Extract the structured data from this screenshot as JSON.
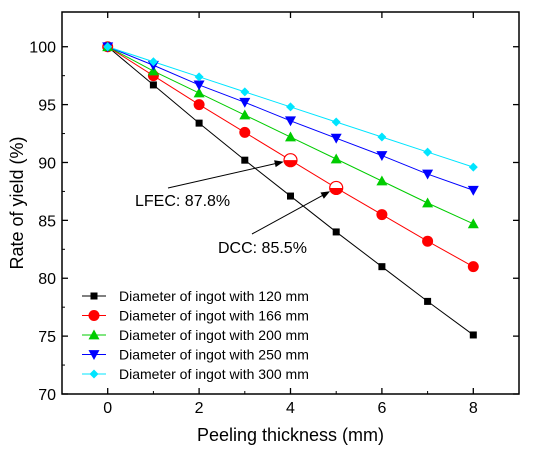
{
  "chart_data": {
    "type": "line",
    "title": "",
    "xlabel": "Peeling thickness (mm)",
    "ylabel": "Rate of yield (%)",
    "xlim": [
      -1,
      9
    ],
    "ylim": [
      70,
      103
    ],
    "x": [
      0,
      1,
      2,
      3,
      4,
      5,
      6,
      7,
      8
    ],
    "xticks": [
      0,
      2,
      4,
      6,
      8
    ],
    "yticks": [
      70,
      75,
      80,
      85,
      90,
      95,
      100
    ],
    "grid": false,
    "legend_position": "bottom-left",
    "series": [
      {
        "name": "Diameter of ingot with 120 mm",
        "color": "#000000",
        "marker": "square",
        "values": [
          100,
          96.7,
          93.4,
          90.2,
          87.1,
          84.0,
          81.0,
          78.0,
          75.1
        ]
      },
      {
        "name": "Diameter of ingot with 166 mm",
        "color": "#ff0000",
        "marker": "circle",
        "values": [
          100,
          97.5,
          95.0,
          92.6,
          90.2,
          87.8,
          85.5,
          83.2,
          81.0
        ]
      },
      {
        "name": "Diameter of ingot with 200 mm",
        "color": "#00cc00",
        "marker": "triangle-up",
        "values": [
          100,
          97.9,
          96.0,
          94.1,
          92.2,
          90.3,
          88.4,
          86.5,
          84.7
        ]
      },
      {
        "name": "Diameter of ingot with 250 mm",
        "color": "#0000ff",
        "marker": "triangle-down",
        "values": [
          100,
          98.4,
          96.7,
          95.2,
          93.6,
          92.1,
          90.6,
          89.0,
          87.6
        ]
      },
      {
        "name": "Diameter of ingot with 300 mm",
        "color": "#00e5ff",
        "marker": "diamond",
        "values": [
          100,
          98.7,
          97.4,
          96.1,
          94.8,
          93.5,
          92.2,
          90.9,
          89.6
        ]
      }
    ],
    "annotations": [
      {
        "text": "LFEC: 87.8%",
        "x": 4,
        "y": 90.2
      },
      {
        "text": "DCC: 85.5%",
        "x": 5,
        "y": 87.8
      }
    ]
  }
}
